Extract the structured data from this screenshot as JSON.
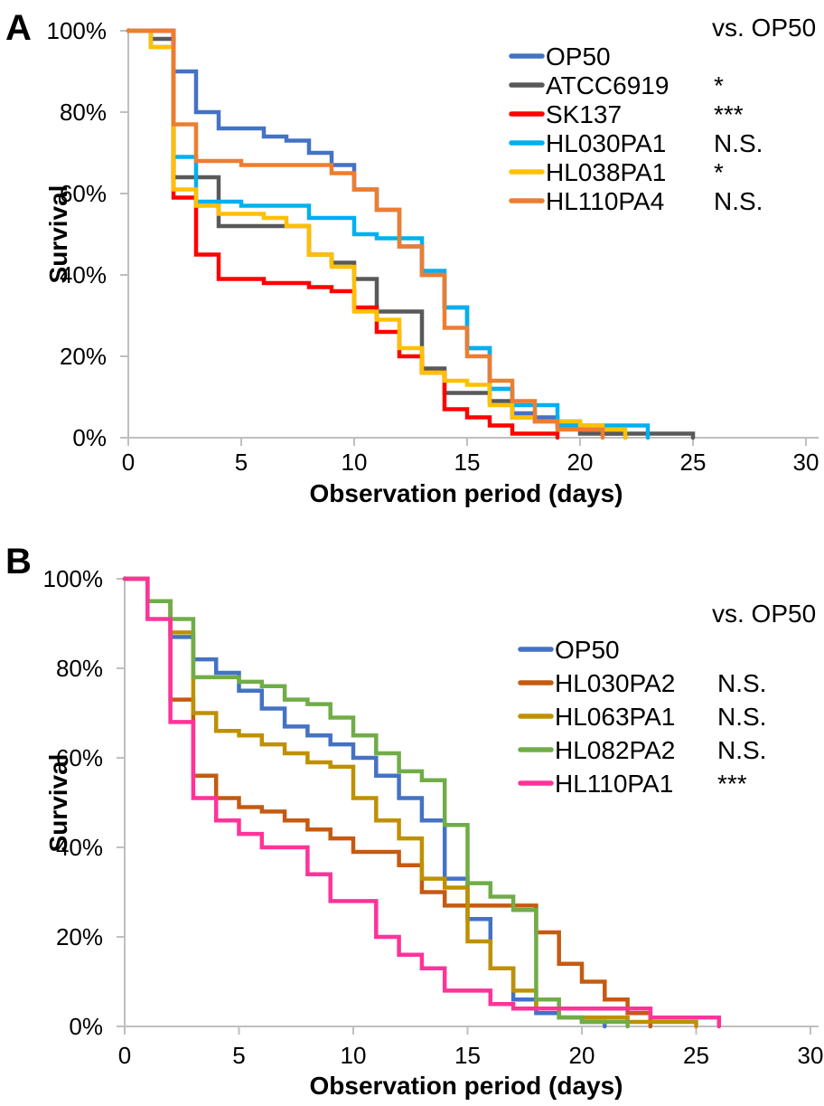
{
  "chart_data": [
    {
      "type": "line",
      "step": true,
      "panel_label": "A",
      "xlabel": "Observation period (days)",
      "ylabel": "Survival",
      "xlim": [
        0,
        30
      ],
      "ylim": [
        0,
        100
      ],
      "x_ticks": [
        0,
        5,
        10,
        15,
        20,
        25,
        30
      ],
      "y_ticks": [
        "100%",
        "80%",
        "60%",
        "40%",
        "20%",
        "0%"
      ],
      "grid": false,
      "legend_position": "upper-right",
      "legend_header": "vs. OP50",
      "series": [
        {
          "name": "OP50",
          "color": "#4472C4",
          "significance_vs_op50": "",
          "points": [
            [
              0,
              100
            ],
            [
              2,
              90
            ],
            [
              3,
              80
            ],
            [
              4,
              76
            ],
            [
              6,
              74
            ],
            [
              7,
              73
            ],
            [
              8,
              70
            ],
            [
              9,
              67
            ],
            [
              10,
              61
            ],
            [
              11,
              56
            ],
            [
              12,
              47
            ],
            [
              13,
              40
            ],
            [
              14,
              32
            ],
            [
              15,
              22
            ],
            [
              16,
              12
            ],
            [
              17,
              6
            ],
            [
              18,
              5
            ],
            [
              19,
              4
            ],
            [
              20,
              2
            ],
            [
              21,
              1
            ],
            [
              22,
              0
            ]
          ]
        },
        {
          "name": "ATCC6919",
          "color": "#595959",
          "significance_vs_op50": "*",
          "points": [
            [
              0,
              100
            ],
            [
              1,
              98
            ],
            [
              2,
              64
            ],
            [
              4,
              52
            ],
            [
              8,
              45
            ],
            [
              9,
              43
            ],
            [
              10,
              39
            ],
            [
              11,
              31
            ],
            [
              13,
              17
            ],
            [
              14,
              11
            ],
            [
              16,
              9
            ],
            [
              17,
              5
            ],
            [
              18,
              4
            ],
            [
              19,
              3
            ],
            [
              20,
              1
            ],
            [
              25,
              0
            ]
          ]
        },
        {
          "name": "SK137",
          "color": "#FF0000",
          "significance_vs_op50": "***",
          "points": [
            [
              0,
              100
            ],
            [
              2,
              59
            ],
            [
              3,
              45
            ],
            [
              4,
              39
            ],
            [
              6,
              38
            ],
            [
              8,
              37
            ],
            [
              9,
              36
            ],
            [
              10,
              32
            ],
            [
              11,
              26
            ],
            [
              12,
              20
            ],
            [
              13,
              16
            ],
            [
              14,
              7
            ],
            [
              15,
              5
            ],
            [
              16,
              3
            ],
            [
              17,
              1
            ],
            [
              19,
              0
            ]
          ]
        },
        {
          "name": "HL030PA1",
          "color": "#00B0F0",
          "significance_vs_op50": "N.S.",
          "points": [
            [
              0,
              100
            ],
            [
              1,
              96
            ],
            [
              2,
              69
            ],
            [
              3,
              58
            ],
            [
              5,
              57
            ],
            [
              8,
              54
            ],
            [
              10,
              50
            ],
            [
              11,
              49
            ],
            [
              13,
              41
            ],
            [
              14,
              32
            ],
            [
              15,
              22
            ],
            [
              16,
              12
            ],
            [
              17,
              8
            ],
            [
              19,
              3
            ],
            [
              23,
              0
            ]
          ]
        },
        {
          "name": "HL038PA1",
          "color": "#FFC000",
          "significance_vs_op50": "*",
          "points": [
            [
              0,
              100
            ],
            [
              1,
              96
            ],
            [
              2,
              61
            ],
            [
              3,
              57
            ],
            [
              4,
              55
            ],
            [
              6,
              54
            ],
            [
              7,
              52
            ],
            [
              8,
              45
            ],
            [
              9,
              42
            ],
            [
              10,
              31
            ],
            [
              11,
              29
            ],
            [
              12,
              22
            ],
            [
              13,
              16
            ],
            [
              14,
              14
            ],
            [
              15,
              13
            ],
            [
              16,
              8
            ],
            [
              17,
              5
            ],
            [
              18,
              4
            ],
            [
              20,
              3
            ],
            [
              21,
              2
            ],
            [
              22,
              0
            ]
          ]
        },
        {
          "name": "HL110PA4",
          "color": "#ED7D31",
          "significance_vs_op50": "N.S.",
          "points": [
            [
              0,
              100
            ],
            [
              2,
              77
            ],
            [
              3,
              68
            ],
            [
              5,
              67
            ],
            [
              9,
              65
            ],
            [
              10,
              61
            ],
            [
              11,
              56
            ],
            [
              12,
              47
            ],
            [
              13,
              40
            ],
            [
              14,
              27
            ],
            [
              15,
              20
            ],
            [
              16,
              14
            ],
            [
              17,
              9
            ],
            [
              18,
              4
            ],
            [
              19,
              2
            ],
            [
              21,
              0
            ]
          ]
        }
      ]
    },
    {
      "type": "line",
      "step": true,
      "panel_label": "B",
      "xlabel": "Observation period (days)",
      "ylabel": "Survival",
      "xlim": [
        0,
        30
      ],
      "ylim": [
        0,
        100
      ],
      "x_ticks": [
        0,
        5,
        10,
        15,
        20,
        25,
        30
      ],
      "y_ticks": [
        "100%",
        "80%",
        "60%",
        "40%",
        "20%",
        "0%"
      ],
      "grid": false,
      "legend_position": "upper-right",
      "legend_header": "vs. OP50",
      "series": [
        {
          "name": "OP50",
          "color": "#4472C4",
          "significance_vs_op50": "",
          "points": [
            [
              0,
              100
            ],
            [
              1,
              95
            ],
            [
              2,
              87
            ],
            [
              3,
              82
            ],
            [
              4,
              79
            ],
            [
              5,
              75
            ],
            [
              6,
              71
            ],
            [
              7,
              67
            ],
            [
              8,
              65
            ],
            [
              9,
              63
            ],
            [
              10,
              60
            ],
            [
              11,
              56
            ],
            [
              12,
              51
            ],
            [
              13,
              46
            ],
            [
              14,
              33
            ],
            [
              15,
              24
            ],
            [
              16,
              13
            ],
            [
              17,
              6
            ],
            [
              18,
              3
            ],
            [
              19,
              2
            ],
            [
              20,
              1
            ],
            [
              21,
              0
            ]
          ]
        },
        {
          "name": "HL030PA2",
          "color": "#C55A11",
          "significance_vs_op50": "N.S.",
          "points": [
            [
              0,
              100
            ],
            [
              1,
              95
            ],
            [
              2,
              73
            ],
            [
              3,
              56
            ],
            [
              4,
              51
            ],
            [
              5,
              49
            ],
            [
              6,
              48
            ],
            [
              7,
              46
            ],
            [
              8,
              44
            ],
            [
              9,
              42
            ],
            [
              10,
              39
            ],
            [
              12,
              36
            ],
            [
              13,
              30
            ],
            [
              14,
              27
            ],
            [
              18,
              21
            ],
            [
              19,
              14
            ],
            [
              20,
              10
            ],
            [
              21,
              6
            ],
            [
              22,
              3
            ],
            [
              23,
              0
            ]
          ]
        },
        {
          "name": "HL063PA1",
          "color": "#BF9000",
          "significance_vs_op50": "N.S.",
          "points": [
            [
              0,
              100
            ],
            [
              1,
              95
            ],
            [
              2,
              88
            ],
            [
              3,
              70
            ],
            [
              4,
              66
            ],
            [
              5,
              65
            ],
            [
              6,
              63
            ],
            [
              7,
              61
            ],
            [
              8,
              59
            ],
            [
              9,
              58
            ],
            [
              10,
              51
            ],
            [
              11,
              46
            ],
            [
              12,
              42
            ],
            [
              13,
              33
            ],
            [
              14,
              31
            ],
            [
              15,
              19
            ],
            [
              16,
              13
            ],
            [
              17,
              8
            ],
            [
              18,
              4
            ],
            [
              19,
              2
            ],
            [
              22,
              1
            ],
            [
              25,
              0
            ]
          ]
        },
        {
          "name": "HL082PA2",
          "color": "#70AD47",
          "significance_vs_op50": "N.S.",
          "points": [
            [
              0,
              100
            ],
            [
              1,
              95
            ],
            [
              2,
              91
            ],
            [
              3,
              78
            ],
            [
              5,
              77
            ],
            [
              6,
              76
            ],
            [
              7,
              73
            ],
            [
              8,
              72
            ],
            [
              9,
              69
            ],
            [
              10,
              65
            ],
            [
              11,
              61
            ],
            [
              12,
              57
            ],
            [
              13,
              55
            ],
            [
              14,
              45
            ],
            [
              15,
              32
            ],
            [
              16,
              29
            ],
            [
              17,
              26
            ],
            [
              18,
              6
            ],
            [
              19,
              2
            ],
            [
              20,
              1
            ],
            [
              22,
              0
            ]
          ]
        },
        {
          "name": "HL110PA1",
          "color": "#FF3399",
          "significance_vs_op50": "***",
          "points": [
            [
              0,
              100
            ],
            [
              1,
              91
            ],
            [
              2,
              68
            ],
            [
              3,
              51
            ],
            [
              4,
              46
            ],
            [
              5,
              43
            ],
            [
              6,
              40
            ],
            [
              8,
              34
            ],
            [
              9,
              28
            ],
            [
              11,
              20
            ],
            [
              12,
              16
            ],
            [
              13,
              13
            ],
            [
              14,
              8
            ],
            [
              16,
              5
            ],
            [
              17,
              4
            ],
            [
              23,
              2
            ],
            [
              26,
              0
            ]
          ]
        }
      ]
    }
  ]
}
